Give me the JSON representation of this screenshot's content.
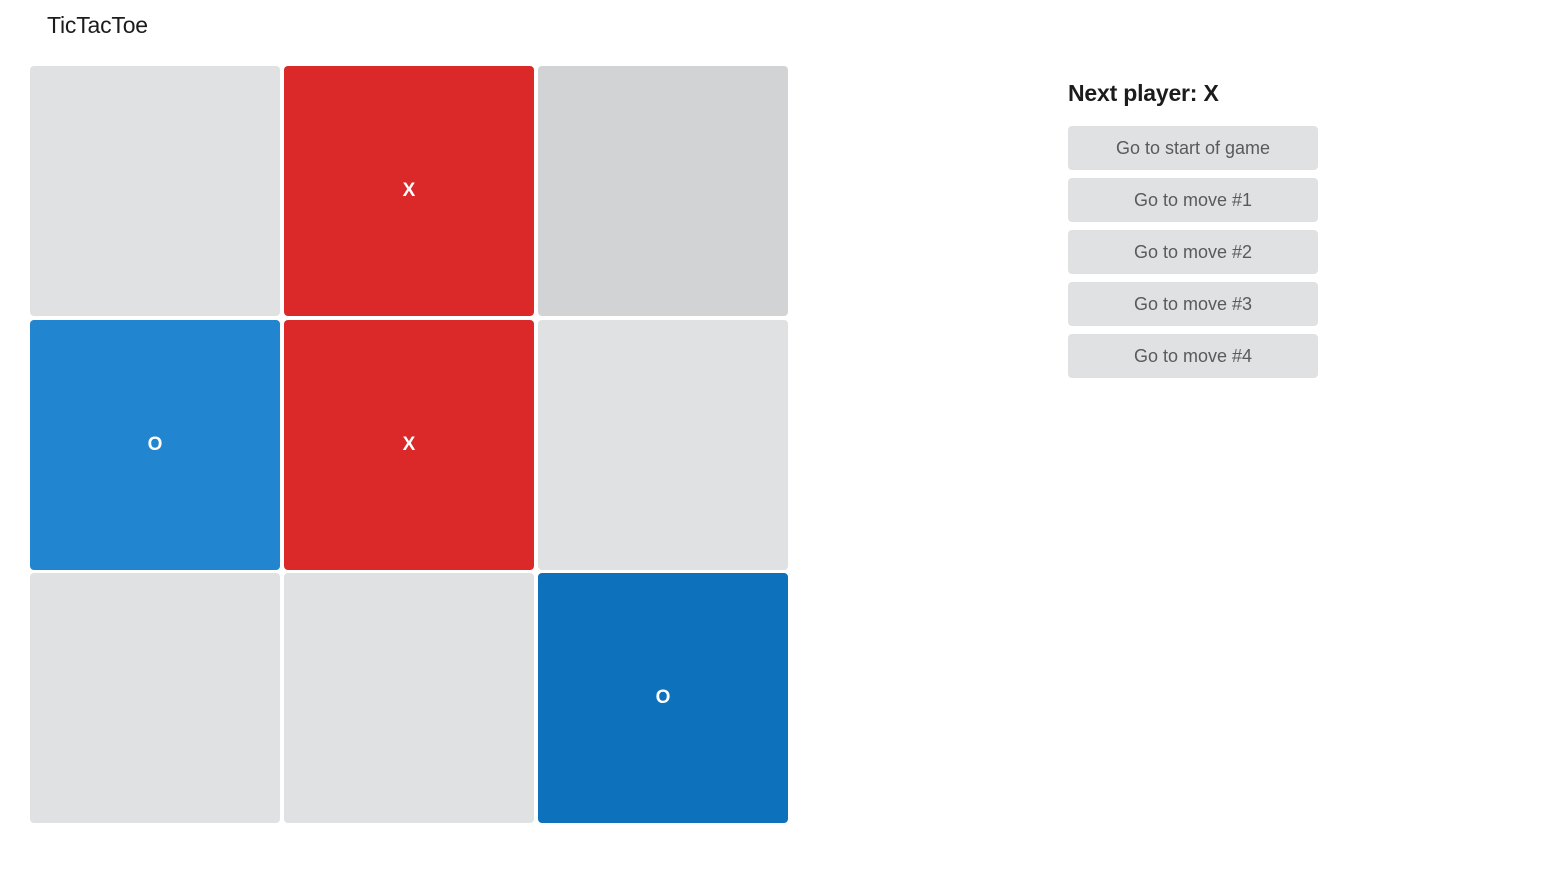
{
  "app": {
    "title": "TicTacToe"
  },
  "board": {
    "cells": [
      {
        "value": ""
      },
      {
        "value": "X"
      },
      {
        "value": ""
      },
      {
        "value": "O"
      },
      {
        "value": "X"
      },
      {
        "value": ""
      },
      {
        "value": ""
      },
      {
        "value": ""
      },
      {
        "value": "O"
      }
    ],
    "colors": {
      "empty": "#e0e1e2",
      "hovered": "#d2d3d5",
      "x": "#db2828",
      "o": "#2185d0",
      "o_active": "#0e71bc"
    }
  },
  "status": {
    "text": "Next player: X"
  },
  "moves": [
    {
      "label": "Go to start of game"
    },
    {
      "label": "Go to move #1"
    },
    {
      "label": "Go to move #2"
    },
    {
      "label": "Go to move #3"
    },
    {
      "label": "Go to move #4"
    }
  ]
}
